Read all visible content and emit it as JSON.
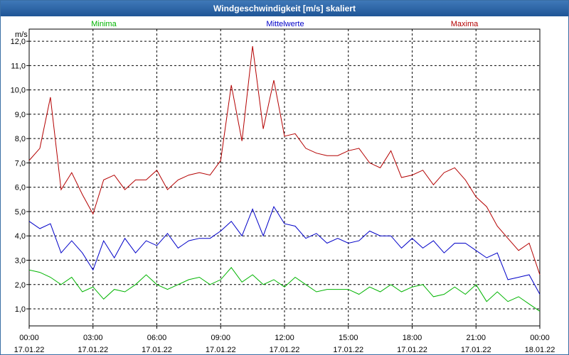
{
  "chart_data": {
    "type": "line",
    "title": "Windgeschwindigkeit [m/s] skaliert",
    "ylabel": "m/s",
    "ylim": [
      0.3,
      12.5
    ],
    "yticks": [
      "1,0",
      "2,0",
      "3,0",
      "4,0",
      "5,0",
      "6,0",
      "7,0",
      "8,0",
      "9,0",
      "10,0",
      "11,0",
      "12,0"
    ],
    "ytick_values": [
      1,
      2,
      3,
      4,
      5,
      6,
      7,
      8,
      9,
      10,
      11,
      12
    ],
    "xlim": [
      0,
      24
    ],
    "xticks": [
      {
        "time": "00:00",
        "date": "17.01.22"
      },
      {
        "time": "03:00",
        "date": "17.01.22"
      },
      {
        "time": "06:00",
        "date": "17.01.22"
      },
      {
        "time": "09:00",
        "date": "17.01.22"
      },
      {
        "time": "12:00",
        "date": "17.01.22"
      },
      {
        "time": "15:00",
        "date": "17.01.22"
      },
      {
        "time": "18:00",
        "date": "17.01.22"
      },
      {
        "time": "21:00",
        "date": "17.01.22"
      },
      {
        "time": "00:00",
        "date": "18.01.22"
      }
    ],
    "xtick_hours": [
      0,
      3,
      6,
      9,
      12,
      15,
      18,
      21,
      24
    ],
    "grid": true,
    "x_hours": [
      0,
      0.5,
      1,
      1.5,
      2,
      2.5,
      3,
      3.5,
      4,
      4.5,
      5,
      5.5,
      6,
      6.5,
      7,
      7.5,
      8,
      8.5,
      9,
      9.5,
      10,
      10.5,
      11,
      11.5,
      12,
      12.5,
      13,
      13.5,
      14,
      14.5,
      15,
      15.5,
      16,
      16.5,
      17,
      17.5,
      18,
      18.5,
      19,
      19.5,
      20,
      20.5,
      21,
      21.5,
      22,
      22.5,
      23,
      23.5,
      24
    ],
    "series": [
      {
        "name": "Minima",
        "color": "#00b400",
        "values": [
          2.6,
          2.5,
          2.3,
          2.0,
          2.3,
          1.7,
          1.9,
          1.4,
          1.8,
          1.7,
          2.0,
          2.4,
          2.0,
          1.8,
          2.0,
          2.2,
          2.3,
          2.0,
          2.2,
          2.7,
          2.1,
          2.4,
          2.0,
          2.2,
          1.9,
          2.3,
          2.0,
          1.7,
          1.8,
          1.8,
          1.8,
          1.6,
          1.9,
          1.7,
          2.0,
          1.7,
          1.9,
          2.0,
          1.5,
          1.6,
          1.9,
          1.6,
          2.0,
          1.3,
          1.7,
          1.3,
          1.5,
          1.2,
          0.9
        ]
      },
      {
        "name": "Mittelwerte",
        "color": "#0000c8",
        "values": [
          4.6,
          4.3,
          4.5,
          3.3,
          3.8,
          3.3,
          2.6,
          3.8,
          3.1,
          3.9,
          3.3,
          3.8,
          3.6,
          4.1,
          3.5,
          3.8,
          3.9,
          3.9,
          4.2,
          4.6,
          4.0,
          5.1,
          4.0,
          5.2,
          4.5,
          4.4,
          3.9,
          4.1,
          3.7,
          3.9,
          3.7,
          3.8,
          4.2,
          4.0,
          4.0,
          3.5,
          3.9,
          3.5,
          3.8,
          3.3,
          3.7,
          3.7,
          3.4,
          3.1,
          3.3,
          2.2,
          2.3,
          2.4,
          1.6
        ]
      },
      {
        "name": "Maxima",
        "color": "#b40000",
        "values": [
          7.1,
          7.6,
          9.7,
          5.9,
          6.6,
          5.7,
          4.9,
          6.3,
          6.5,
          5.9,
          6.3,
          6.3,
          6.7,
          5.9,
          6.3,
          6.5,
          6.6,
          6.5,
          7.1,
          10.2,
          7.9,
          11.8,
          8.4,
          10.4,
          8.1,
          8.2,
          7.6,
          7.4,
          7.3,
          7.3,
          7.5,
          7.6,
          7.0,
          6.8,
          7.5,
          6.4,
          6.5,
          6.7,
          6.1,
          6.6,
          6.8,
          6.3,
          5.6,
          5.2,
          4.4,
          3.9,
          3.4,
          3.7,
          2.4
        ]
      }
    ]
  }
}
